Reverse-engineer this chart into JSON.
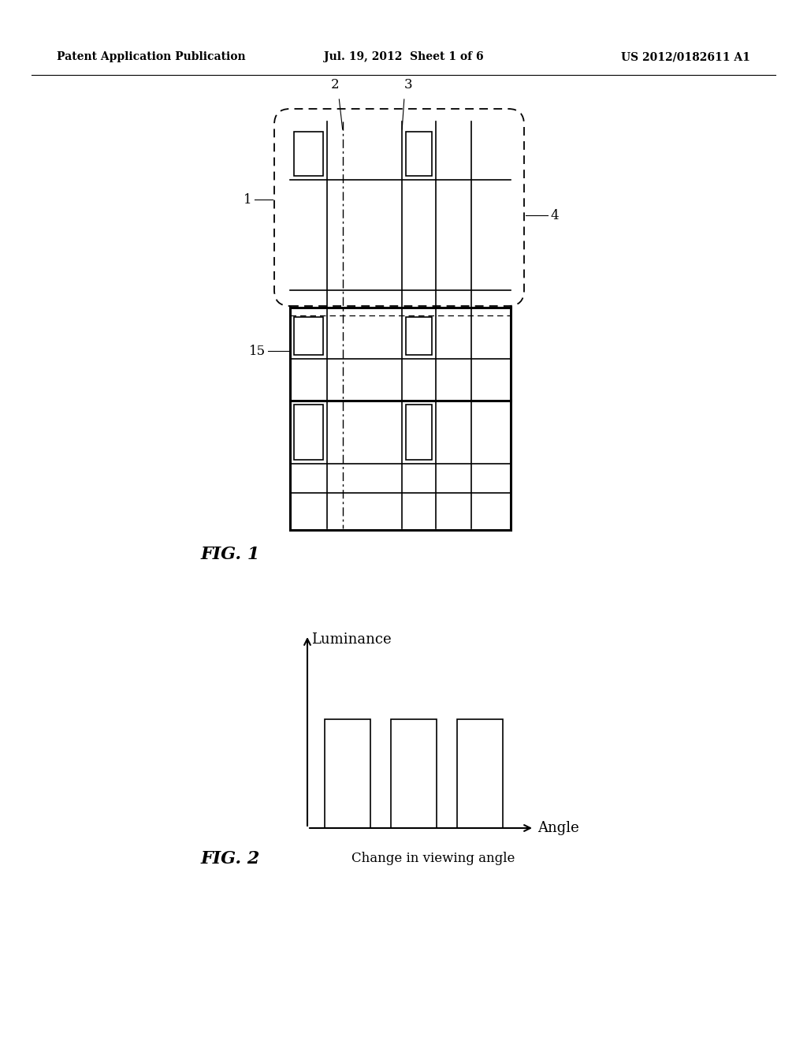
{
  "bg_color": "#ffffff",
  "header_left": "Patent Application Publication",
  "header_mid": "Jul. 19, 2012  Sheet 1 of 6",
  "header_right": "US 2012/0182611 A1",
  "fig1_label": "FIG. 1",
  "fig2_label": "FIG. 2",
  "fig2_ylabel": "Luminance",
  "fig2_xlabel": "Angle",
  "fig2_sublabel": "Change in viewing angle",
  "lw_thick": 2.2,
  "lw_thin": 1.2,
  "lw_med": 1.6
}
